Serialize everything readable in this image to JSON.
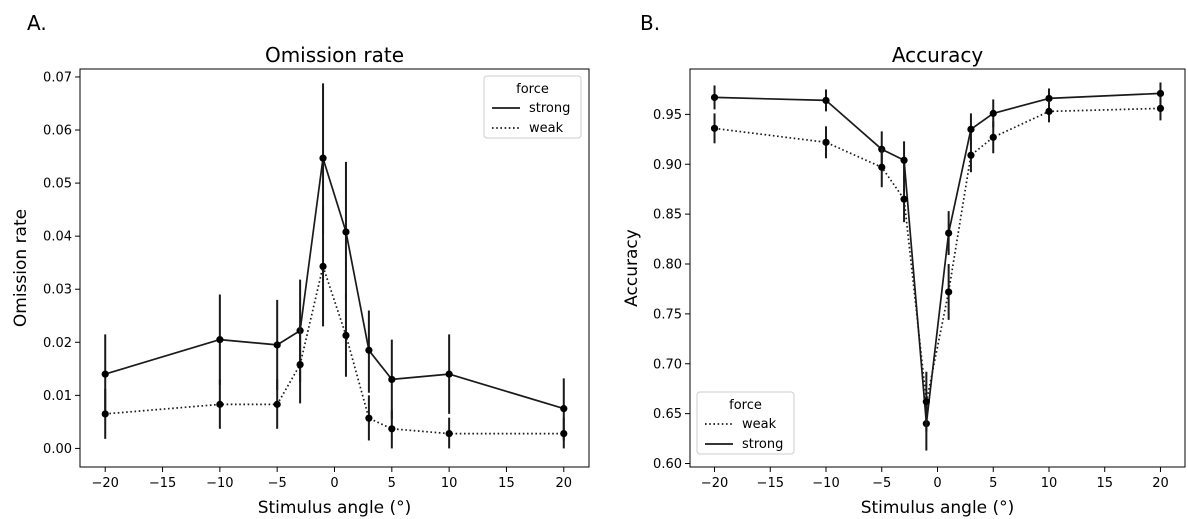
{
  "chart_data": [
    {
      "type": "line",
      "panel_label": "A.",
      "title": "Omission rate",
      "xlabel": "Stimulus angle (°)",
      "ylabel": "Omission rate",
      "xlim": [
        -22.2,
        22.2
      ],
      "ylim": [
        -0.0035,
        0.0715
      ],
      "xticks": [
        -20,
        -15,
        -10,
        -5,
        0,
        5,
        10,
        15,
        20
      ],
      "xtick_labels": [
        "−20",
        "−15",
        "−10",
        "−5",
        "0",
        "5",
        "10",
        "15",
        "20"
      ],
      "yticks": [
        0.0,
        0.01,
        0.02,
        0.03,
        0.04,
        0.05,
        0.06,
        0.07
      ],
      "ytick_labels": [
        "0.00",
        "0.01",
        "0.02",
        "0.03",
        "0.04",
        "0.05",
        "0.06",
        "0.07"
      ],
      "grid": false,
      "legend": {
        "title": "force",
        "placement": "top-right"
      },
      "x": [
        -20,
        -10,
        -5,
        -3,
        -1,
        1,
        3,
        5,
        10,
        20
      ],
      "series": [
        {
          "name": "strong",
          "style": "solid",
          "values": [
            0.014,
            0.0205,
            0.0195,
            0.0222,
            0.0547,
            0.0408,
            0.0185,
            0.013,
            0.014,
            0.0075
          ],
          "err_low": [
            0.006,
            0.012,
            0.011,
            0.0125,
            0.0405,
            0.028,
            0.0105,
            0.0055,
            0.0065,
            0.0015
          ],
          "err_high": [
            0.0215,
            0.029,
            0.028,
            0.0318,
            0.0688,
            0.054,
            0.026,
            0.0205,
            0.0215,
            0.0132
          ]
        },
        {
          "name": "weak",
          "style": "dotted",
          "values": [
            0.0065,
            0.0083,
            0.0083,
            0.0158,
            0.0343,
            0.0213,
            0.0057,
            0.0037,
            0.0028,
            0.0028
          ],
          "err_low": [
            0.0018,
            0.0037,
            0.0037,
            0.0085,
            0.023,
            0.0135,
            0.0015,
            0.0,
            0.0,
            0.0
          ],
          "err_high": [
            0.0112,
            0.013,
            0.013,
            0.0232,
            0.0455,
            0.0292,
            0.01,
            0.0072,
            0.0058,
            0.0058
          ]
        }
      ],
      "legend_order": [
        0,
        1
      ]
    },
    {
      "type": "line",
      "panel_label": "B.",
      "title": "Accuracy",
      "xlabel": "Stimulus angle (°)",
      "ylabel": "Accuracy",
      "xlim": [
        -22.2,
        22.2
      ],
      "ylim": [
        0.5965,
        0.9955
      ],
      "xticks": [
        -20,
        -15,
        -10,
        -5,
        0,
        5,
        10,
        15,
        20
      ],
      "xtick_labels": [
        "−20",
        "−15",
        "−10",
        "−5",
        "0",
        "5",
        "10",
        "15",
        "20"
      ],
      "yticks": [
        0.6,
        0.65,
        0.7,
        0.75,
        0.8,
        0.85,
        0.9,
        0.95
      ],
      "ytick_labels": [
        "0.60",
        "0.65",
        "0.70",
        "0.75",
        "0.80",
        "0.85",
        "0.90",
        "0.95"
      ],
      "grid": false,
      "legend": {
        "title": "force",
        "placement": "bottom-left"
      },
      "x": [
        -20,
        -10,
        -5,
        -3,
        -1,
        1,
        3,
        5,
        10,
        20
      ],
      "series": [
        {
          "name": "strong",
          "style": "solid",
          "values": [
            0.967,
            0.964,
            0.915,
            0.904,
            0.64,
            0.831,
            0.935,
            0.951,
            0.966,
            0.971
          ],
          "err_low": [
            0.955,
            0.953,
            0.897,
            0.885,
            0.613,
            0.809,
            0.919,
            0.937,
            0.956,
            0.96
          ],
          "err_high": [
            0.979,
            0.975,
            0.933,
            0.923,
            0.667,
            0.853,
            0.951,
            0.965,
            0.976,
            0.982
          ]
        },
        {
          "name": "weak",
          "style": "dotted",
          "values": [
            0.936,
            0.922,
            0.897,
            0.865,
            0.662,
            0.772,
            0.909,
            0.927,
            0.953,
            0.956
          ],
          "err_low": [
            0.921,
            0.906,
            0.877,
            0.842,
            0.632,
            0.744,
            0.892,
            0.911,
            0.942,
            0.944
          ],
          "err_high": [
            0.951,
            0.938,
            0.917,
            0.888,
            0.692,
            0.8,
            0.926,
            0.943,
            0.964,
            0.968
          ]
        }
      ],
      "legend_order": [
        1,
        0
      ]
    }
  ]
}
